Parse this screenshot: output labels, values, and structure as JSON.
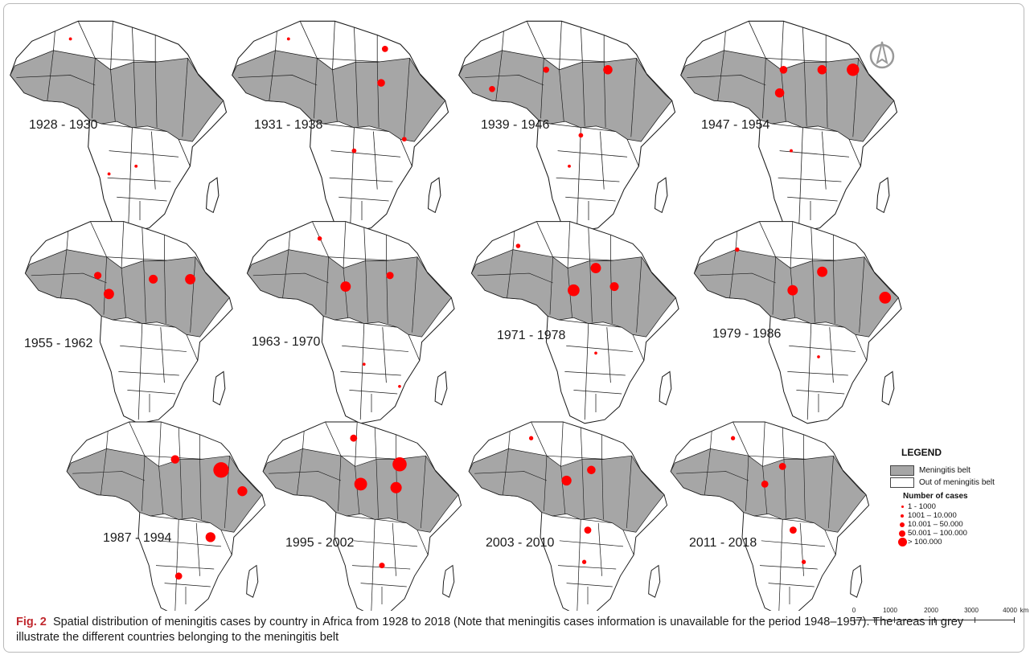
{
  "panels": [
    {
      "period": "1928 - 1930"
    },
    {
      "period": "1931 - 1938"
    },
    {
      "period": "1939 - 1946"
    },
    {
      "period": "1947 - 1954"
    },
    {
      "period": "1955 - 1962"
    },
    {
      "period": "1963 - 1970"
    },
    {
      "period": "1971 - 1978"
    },
    {
      "period": "1979 - 1986"
    },
    {
      "period": "1987 - 1994"
    },
    {
      "period": "1995 - 2002"
    },
    {
      "period": "2003 - 2010"
    },
    {
      "period": "2011 - 2018"
    }
  ],
  "legend": {
    "title": "LEGEND",
    "belt_label": "Meningitis belt",
    "out_label": "Out of meningitis belt",
    "cases_title": "Number of cases",
    "classes": [
      "1 - 1000",
      "1001 – 10.000",
      "10.001 – 50.000",
      "50.001 – 100.000",
      "> 100.000"
    ]
  },
  "scale": {
    "ticks": [
      "0",
      "1000",
      "2000",
      "3000",
      "4000"
    ],
    "unit": "km"
  },
  "caption": {
    "label": "Fig. 2",
    "text": "Spatial distribution of meningitis cases by country in Africa from 1928 to 2018 (Note that meningitis cases information is unavailable for the period 1948–1957). The areas in grey illustrate the different countries belonging to the meningitis belt"
  },
  "colors": {
    "belt": "#a6a6a6",
    "outside": "#ffffff",
    "border": "#1a1a1a",
    "cases": "#ff0000"
  }
}
